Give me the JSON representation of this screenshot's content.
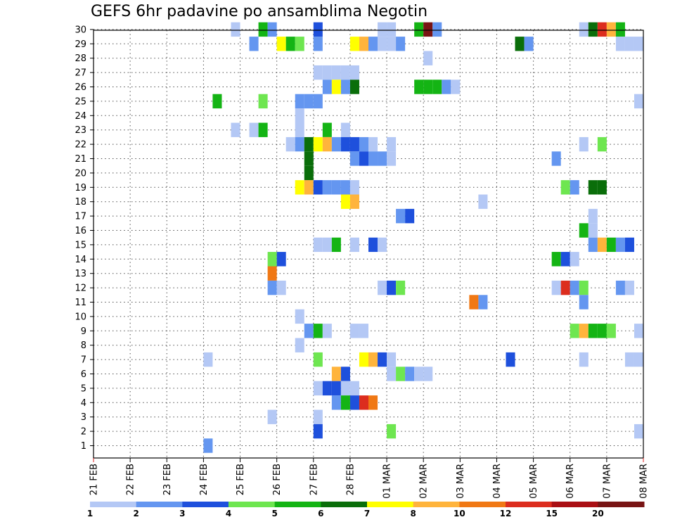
{
  "chart_data": {
    "type": "heatmap",
    "title": "GEFS 6hr padavine po ansamblima Negotin",
    "xlabel": "",
    "ylabel": "",
    "y_ticks": [
      "1",
      "2",
      "3",
      "4",
      "5",
      "6",
      "7",
      "8",
      "9",
      "10",
      "11",
      "12",
      "13",
      "14",
      "15",
      "16",
      "17",
      "18",
      "19",
      "20",
      "21",
      "22",
      "23",
      "24",
      "25",
      "26",
      "27",
      "28",
      "29",
      "30"
    ],
    "x_ticks": [
      "21 FEB",
      "22 FEB",
      "23 FEB",
      "24 FEB",
      "25 FEB",
      "26 FEB",
      "27 FEB",
      "28 FEB",
      "01 MAR",
      "02 MAR",
      "03 MAR",
      "04 MAR",
      "05 MAR",
      "06 MAR",
      "07 MAR",
      "08 MAR"
    ],
    "x_range_steps": [
      0,
      60
    ],
    "steps_per_day": 4,
    "grid": "dotted",
    "colorbar": {
      "labels": [
        "1",
        "2",
        "3",
        "4",
        "5",
        "6",
        "7",
        "8",
        "10",
        "12",
        "15",
        "20"
      ],
      "colors": [
        "#b4c8f5",
        "#6496f0",
        "#1e50dc",
        "#6ee650",
        "#14b414",
        "#0a6e0a",
        "#ffff00",
        "#ffb43c",
        "#f07814",
        "#dc2d1e",
        "#aa0f14",
        "#781414"
      ]
    },
    "series": [
      {
        "member": "30",
        "cells": [
          [
            15,
            0
          ],
          [
            18,
            4
          ],
          [
            19,
            1
          ],
          [
            24,
            2
          ],
          [
            31,
            0
          ],
          [
            32,
            0
          ],
          [
            35,
            4
          ],
          [
            36,
            11
          ],
          [
            37,
            1
          ],
          [
            53,
            0
          ],
          [
            54,
            5
          ],
          [
            55,
            9
          ],
          [
            56,
            7
          ],
          [
            57,
            4
          ]
        ]
      },
      {
        "member": "29",
        "cells": [
          [
            17,
            1
          ],
          [
            20,
            6
          ],
          [
            21,
            4
          ],
          [
            22,
            3
          ],
          [
            24,
            1
          ],
          [
            28,
            6
          ],
          [
            29,
            7
          ],
          [
            30,
            1
          ],
          [
            31,
            0
          ],
          [
            32,
            0
          ],
          [
            33,
            1
          ],
          [
            46,
            5
          ],
          [
            47,
            1
          ],
          [
            57,
            0
          ],
          [
            58,
            0
          ],
          [
            59,
            0
          ]
        ]
      },
      {
        "member": "28",
        "cells": [
          [
            36,
            0
          ]
        ]
      },
      {
        "member": "27",
        "cells": [
          [
            24,
            0
          ],
          [
            25,
            0
          ],
          [
            26,
            0
          ],
          [
            27,
            0
          ],
          [
            28,
            0
          ]
        ]
      },
      {
        "member": "26",
        "cells": [
          [
            25,
            1
          ],
          [
            26,
            6
          ],
          [
            27,
            1
          ],
          [
            28,
            5
          ],
          [
            35,
            4
          ],
          [
            36,
            4
          ],
          [
            37,
            4
          ],
          [
            38,
            1
          ],
          [
            39,
            0
          ]
        ]
      },
      {
        "member": "25",
        "cells": [
          [
            13,
            4
          ],
          [
            18,
            3
          ],
          [
            22,
            1
          ],
          [
            23,
            1
          ],
          [
            24,
            1
          ],
          [
            59,
            0
          ]
        ]
      },
      {
        "member": "24",
        "cells": [
          [
            22,
            0
          ]
        ]
      },
      {
        "member": "23",
        "cells": [
          [
            15,
            0
          ],
          [
            17,
            0
          ],
          [
            18,
            4
          ],
          [
            22,
            0
          ],
          [
            25,
            4
          ],
          [
            27,
            0
          ]
        ]
      },
      {
        "member": "22",
        "cells": [
          [
            21,
            0
          ],
          [
            22,
            1
          ],
          [
            23,
            5
          ],
          [
            24,
            6
          ],
          [
            25,
            7
          ],
          [
            26,
            1
          ],
          [
            27,
            2
          ],
          [
            28,
            2
          ],
          [
            29,
            1
          ],
          [
            30,
            0
          ],
          [
            32,
            0
          ],
          [
            53,
            0
          ],
          [
            55,
            3
          ]
        ]
      },
      {
        "member": "21",
        "cells": [
          [
            23,
            5
          ],
          [
            28,
            1
          ],
          [
            29,
            2
          ],
          [
            30,
            1
          ],
          [
            31,
            1
          ],
          [
            32,
            0
          ],
          [
            50,
            1
          ]
        ]
      },
      {
        "member": "20",
        "cells": [
          [
            23,
            5
          ]
        ]
      },
      {
        "member": "19",
        "cells": [
          [
            22,
            6
          ],
          [
            23,
            7
          ],
          [
            24,
            2
          ],
          [
            25,
            1
          ],
          [
            26,
            1
          ],
          [
            27,
            1
          ],
          [
            28,
            0
          ],
          [
            51,
            3
          ],
          [
            52,
            1
          ],
          [
            54,
            5
          ],
          [
            55,
            5
          ]
        ]
      },
      {
        "member": "18",
        "cells": [
          [
            27,
            6
          ],
          [
            28,
            7
          ],
          [
            42,
            0
          ]
        ]
      },
      {
        "member": "17",
        "cells": [
          [
            33,
            1
          ],
          [
            34,
            2
          ],
          [
            54,
            0
          ]
        ]
      },
      {
        "member": "16",
        "cells": [
          [
            53,
            4
          ],
          [
            54,
            0
          ]
        ]
      },
      {
        "member": "15",
        "cells": [
          [
            24,
            0
          ],
          [
            25,
            0
          ],
          [
            26,
            4
          ],
          [
            28,
            0
          ],
          [
            30,
            2
          ],
          [
            31,
            0
          ],
          [
            54,
            1
          ],
          [
            55,
            7
          ],
          [
            56,
            4
          ],
          [
            57,
            1
          ],
          [
            58,
            2
          ]
        ]
      },
      {
        "member": "14",
        "cells": [
          [
            19,
            3
          ],
          [
            20,
            2
          ],
          [
            50,
            4
          ],
          [
            51,
            2
          ],
          [
            52,
            0
          ]
        ]
      },
      {
        "member": "13",
        "cells": [
          [
            19,
            8
          ]
        ]
      },
      {
        "member": "12",
        "cells": [
          [
            19,
            1
          ],
          [
            20,
            0
          ],
          [
            31,
            0
          ],
          [
            32,
            2
          ],
          [
            33,
            3
          ],
          [
            50,
            0
          ],
          [
            51,
            9
          ],
          [
            52,
            1
          ],
          [
            53,
            3
          ],
          [
            57,
            1
          ],
          [
            58,
            0
          ]
        ]
      },
      {
        "member": "11",
        "cells": [
          [
            41,
            8
          ],
          [
            42,
            1
          ],
          [
            53,
            1
          ]
        ]
      },
      {
        "member": "10",
        "cells": [
          [
            22,
            0
          ]
        ]
      },
      {
        "member": "9",
        "cells": [
          [
            23,
            1
          ],
          [
            24,
            4
          ],
          [
            25,
            0
          ],
          [
            28,
            0
          ],
          [
            29,
            0
          ],
          [
            52,
            3
          ],
          [
            53,
            7
          ],
          [
            54,
            4
          ],
          [
            55,
            4
          ],
          [
            56,
            3
          ],
          [
            59,
            0
          ]
        ]
      },
      {
        "member": "8",
        "cells": [
          [
            22,
            0
          ]
        ]
      },
      {
        "member": "7",
        "cells": [
          [
            12,
            0
          ],
          [
            24,
            3
          ],
          [
            29,
            6
          ],
          [
            30,
            7
          ],
          [
            31,
            2
          ],
          [
            32,
            0
          ],
          [
            45,
            2
          ],
          [
            53,
            0
          ],
          [
            58,
            0
          ],
          [
            59,
            0
          ]
        ]
      },
      {
        "member": "6",
        "cells": [
          [
            26,
            7
          ],
          [
            27,
            2
          ],
          [
            32,
            0
          ],
          [
            33,
            3
          ],
          [
            34,
            1
          ],
          [
            35,
            0
          ],
          [
            36,
            0
          ]
        ]
      },
      {
        "member": "5",
        "cells": [
          [
            24,
            0
          ],
          [
            25,
            2
          ],
          [
            26,
            2
          ],
          [
            27,
            0
          ],
          [
            28,
            0
          ]
        ]
      },
      {
        "member": "4",
        "cells": [
          [
            26,
            1
          ],
          [
            27,
            4
          ],
          [
            28,
            2
          ],
          [
            29,
            9
          ],
          [
            30,
            8
          ]
        ]
      },
      {
        "member": "3",
        "cells": [
          [
            19,
            0
          ],
          [
            24,
            0
          ]
        ]
      },
      {
        "member": "2",
        "cells": [
          [
            24,
            2
          ],
          [
            32,
            3
          ],
          [
            59,
            0
          ]
        ]
      },
      {
        "member": "1",
        "cells": [
          [
            12,
            1
          ]
        ]
      }
    ]
  }
}
